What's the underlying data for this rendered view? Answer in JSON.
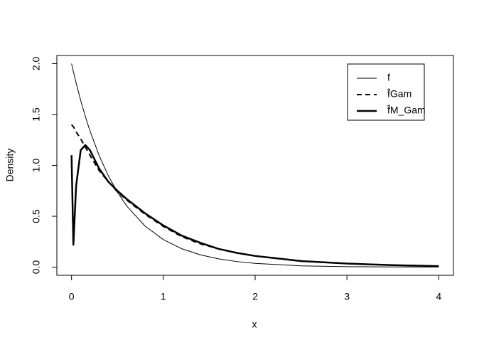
{
  "chart_data": {
    "type": "line",
    "x_label": "x",
    "y_label": "Density",
    "x": [
      0,
      0.02,
      0.05,
      0.1,
      0.15,
      0.2,
      0.3,
      0.4,
      0.5,
      0.6,
      0.8,
      1,
      1.2,
      1.4,
      1.6,
      1.8,
      2,
      2.5,
      3,
      3.5,
      4
    ],
    "series": [
      {
        "name": "f",
        "color": "#000000",
        "width": 1,
        "dash": "none",
        "values": [
          2,
          1.922,
          1.81,
          1.637,
          1.482,
          1.341,
          1.098,
          0.899,
          0.736,
          0.602,
          0.404,
          0.271,
          0.181,
          0.122,
          0.082,
          0.055,
          0.037,
          0.013,
          0.005,
          0.002,
          0.001
        ]
      },
      {
        "name": "f̂Gam",
        "color": "#000000",
        "width": 2,
        "dash": "7 5",
        "values": [
          1.4,
          1.38,
          1.33,
          1.26,
          1.18,
          1.1,
          0.95,
          0.84,
          0.74,
          0.66,
          0.52,
          0.4,
          0.3,
          0.23,
          0.18,
          0.14,
          0.11,
          0.06,
          0.035,
          0.02,
          0.01
        ]
      },
      {
        "name": "f̂M_Gam",
        "color": "#000000",
        "width": 2.5,
        "dash": "none",
        "values": [
          1.1,
          0.22,
          0.8,
          1.15,
          1.2,
          1.15,
          0.97,
          0.84,
          0.75,
          0.67,
          0.53,
          0.41,
          0.31,
          0.24,
          0.18,
          0.14,
          0.11,
          0.06,
          0.035,
          0.02,
          0.01
        ]
      }
    ],
    "xlim": [
      -0.16,
      4.16
    ],
    "ylim": [
      -0.08,
      2.08
    ],
    "xticks": [
      0,
      1,
      2,
      3,
      4
    ],
    "yticks": [
      {
        "value": 0,
        "label": "0.0"
      },
      {
        "value": 0.5,
        "label": "0.5"
      },
      {
        "value": 1,
        "label": "1.0"
      },
      {
        "value": 1.5,
        "label": "1.5"
      },
      {
        "value": 2,
        "label": "2.0"
      }
    ],
    "legend": "top-right"
  }
}
